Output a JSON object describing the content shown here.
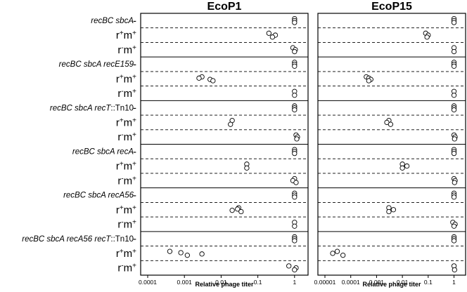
{
  "chart_data": {
    "type": "scatter",
    "xlabel": "Relative phage titer",
    "x_scale": "log",
    "strains": [
      {
        "prefix": "recBC sbcA",
        "suffix": ""
      },
      {
        "prefix": "recBC sbcA recE159",
        "suffix": ""
      },
      {
        "prefix": "recBC sbcA recT",
        "suffix": "::Tn10"
      },
      {
        "prefix": "recBC sbcA   recA",
        "suffix": ""
      },
      {
        "prefix": "recBC sbcA recA56",
        "suffix": ""
      },
      {
        "prefix": "recBC sbcA recA56 recT",
        "suffix": "::Tn10"
      }
    ],
    "conditions": [
      "-",
      "r+m+",
      "r-m+"
    ],
    "condition_parts": [
      {
        "r": "",
        "r_sup": "",
        "m": "-",
        "m_sup": ""
      },
      {
        "r": "r",
        "r_sup": "+",
        "m": "m",
        "m_sup": "+"
      },
      {
        "r": "r",
        "r_sup": "-",
        "m": "m",
        "m_sup": "+"
      }
    ],
    "panels": [
      {
        "title": "EcoP1",
        "xlim": [
          0.0001,
          1.5
        ],
        "xticks": [
          {
            "value": 0.0001,
            "label": "0.0001"
          },
          {
            "value": 0.001,
            "label": "0.001"
          },
          {
            "value": 0.01,
            "label": "0.01"
          },
          {
            "value": 0.1,
            "label": "0.1"
          },
          {
            "value": 1,
            "label": "1"
          }
        ],
        "groups": [
          {
            "strain": "recBC sbcA",
            "rows": [
              [
                1,
                1,
                1
              ],
              [
                0.2,
                0.3,
                0.25
              ],
              [
                0.9,
                1.05,
                1
              ]
            ]
          },
          {
            "strain": "recBC sbcA recE159",
            "rows": [
              [
                1,
                1,
                1
              ],
              [
                0.003,
                0.0025,
                0.005,
                0.006
              ],
              [
                1,
                1
              ]
            ]
          },
          {
            "strain": "recBC sbcA recT::Tn10",
            "rows": [
              [
                1,
                1,
                1
              ],
              [
                0.02,
                0.018
              ],
              [
                1.1,
                1.2,
                1.15
              ]
            ]
          },
          {
            "strain": "recBC sbcA   recA",
            "rows": [
              [
                1,
                1,
                1
              ],
              [
                0.05,
                0.05
              ],
              [
                1,
                0.9,
                1.1
              ]
            ]
          },
          {
            "strain": "recBC sbcA recA56",
            "rows": [
              [
                1,
                1,
                1
              ],
              [
                0.03,
                0.028,
                0.02,
                0.035
              ],
              [
                1,
                1
              ]
            ]
          },
          {
            "strain": "recBC sbcA recA56 recT::Tn10",
            "rows": [
              [
                1,
                1,
                1
              ],
              [
                0.0004,
                0.0008,
                0.003,
                0.0012
              ],
              [
                0.7,
                1.1,
                1
              ]
            ]
          }
        ]
      },
      {
        "title": "EcoP15",
        "xlim": [
          1e-05,
          1.5
        ],
        "xticks": [
          {
            "value": 1e-05,
            "label": "0.00001"
          },
          {
            "value": 0.0001,
            "label": "0.0001"
          },
          {
            "value": 0.001,
            "label": "0.001"
          },
          {
            "value": 0.01,
            "label": "0.01"
          },
          {
            "value": 0.1,
            "label": "0.1"
          },
          {
            "value": 1,
            "label": "1"
          }
        ],
        "groups": [
          {
            "strain": "recBC sbcA",
            "rows": [
              [
                1,
                1,
                1
              ],
              [
                0.08,
                0.1,
                0.09
              ],
              [
                1,
                1
              ]
            ]
          },
          {
            "strain": "recBC sbcA recE159",
            "rows": [
              [
                1,
                1,
                1
              ],
              [
                0.0004,
                0.0005,
                0.0006,
                0.0005
              ],
              [
                1,
                1
              ]
            ]
          },
          {
            "strain": "recBC sbcA recT::Tn10",
            "rows": [
              [
                1,
                1,
                1
              ],
              [
                0.003,
                0.0025,
                0.0035
              ],
              [
                1,
                1.1,
                1.05
              ]
            ]
          },
          {
            "strain": "recBC sbcA   recA",
            "rows": [
              [
                1,
                1,
                1
              ],
              [
                0.01,
                0.015,
                0.01
              ],
              [
                1,
                1.1,
                1.05
              ]
            ]
          },
          {
            "strain": "recBC sbcA recA56",
            "rows": [
              [
                1,
                1,
                1
              ],
              [
                0.003,
                0.0045,
                0.003
              ],
              [
                0.9,
                1.1,
                1
              ]
            ]
          },
          {
            "strain": "recBC sbcA recA56 recT::Tn10",
            "rows": [
              [
                1,
                1,
                1
              ],
              [
                3e-05,
                2e-05,
                5e-05
              ],
              [
                1,
                1.05
              ]
            ]
          }
        ]
      }
    ]
  }
}
